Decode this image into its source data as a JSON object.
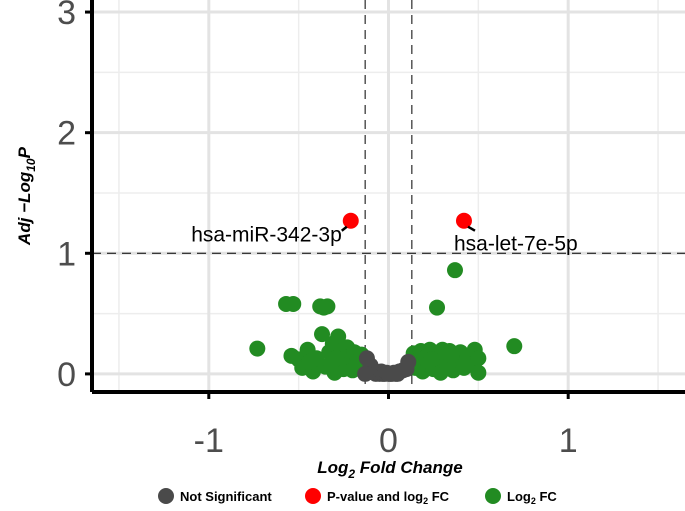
{
  "chart_data": {
    "type": "scatter",
    "title": "",
    "xlabel": "Log2 Fold Change",
    "ylabel": "Adj −Log10P",
    "xlim": [
      -1.65,
      1.65
    ],
    "ylim": [
      -0.15,
      3.1
    ],
    "x_ticks": [
      -1,
      0,
      1
    ],
    "x_tick_labels": [
      "-1",
      "0",
      "1"
    ],
    "y_ticks": [
      0,
      1,
      2,
      3
    ],
    "y_tick_labels": [
      "0",
      "1",
      "2",
      "3"
    ],
    "grid": true,
    "legend_position": "bottom",
    "thresholds": {
      "log2fc": 0.13,
      "neg_log10_p": 1.0
    },
    "colors": {
      "not_significant": "#4a4a4a",
      "p_and_fc": "#ff0000",
      "fc_only": "#228b22"
    },
    "series": [
      {
        "name": "Not Significant",
        "color": "#4a4a4a",
        "points": [
          [
            -0.12,
            0.13
          ],
          [
            -0.1,
            0.07
          ],
          [
            -0.08,
            0.02
          ],
          [
            -0.07,
            0.0
          ],
          [
            -0.05,
            0.0
          ],
          [
            -0.04,
            0.02
          ],
          [
            -0.03,
            0.0
          ],
          [
            -0.02,
            0.0
          ],
          [
            -0.01,
            0.01
          ],
          [
            0.0,
            0.0
          ],
          [
            0.01,
            0.0
          ],
          [
            0.02,
            0.0
          ],
          [
            0.03,
            0.01
          ],
          [
            0.04,
            0.0
          ],
          [
            0.05,
            0.0
          ],
          [
            0.06,
            0.02
          ],
          [
            0.08,
            0.03
          ],
          [
            0.1,
            0.04
          ],
          [
            0.11,
            0.1
          ],
          [
            -0.13,
            0.0
          ]
        ]
      },
      {
        "name": "P-value and log2 FC",
        "color": "#ff0000",
        "points": [
          [
            -0.21,
            1.27
          ],
          [
            0.42,
            1.27
          ]
        ]
      },
      {
        "name": "Log2 FC",
        "color": "#228b22",
        "points": [
          [
            -0.73,
            0.21
          ],
          [
            -0.57,
            0.58
          ],
          [
            -0.53,
            0.58
          ],
          [
            -0.54,
            0.15
          ],
          [
            -0.5,
            0.12
          ],
          [
            -0.48,
            0.05
          ],
          [
            -0.45,
            0.2
          ],
          [
            -0.42,
            0.02
          ],
          [
            -0.4,
            0.13
          ],
          [
            -0.38,
            0.56
          ],
          [
            -0.36,
            0.55
          ],
          [
            -0.34,
            0.56
          ],
          [
            -0.37,
            0.33
          ],
          [
            -0.35,
            0.06
          ],
          [
            -0.33,
            0.18
          ],
          [
            -0.31,
            0.25
          ],
          [
            -0.3,
            0.01
          ],
          [
            -0.28,
            0.31
          ],
          [
            -0.27,
            0.1
          ],
          [
            -0.26,
            0.19
          ],
          [
            -0.25,
            0.04
          ],
          [
            -0.23,
            0.22
          ],
          [
            -0.22,
            0.14
          ],
          [
            -0.2,
            0.03
          ],
          [
            -0.19,
            0.18
          ],
          [
            -0.18,
            0.08
          ],
          [
            -0.17,
            0.12
          ],
          [
            -0.16,
            0.05
          ],
          [
            -0.15,
            0.16
          ],
          [
            -0.44,
            0.1
          ],
          [
            -0.32,
            0.08
          ],
          [
            -0.29,
            0.13
          ],
          [
            0.14,
            0.17
          ],
          [
            0.15,
            0.05
          ],
          [
            0.16,
            0.11
          ],
          [
            0.18,
            0.19
          ],
          [
            0.19,
            0.02
          ],
          [
            0.2,
            0.13
          ],
          [
            0.22,
            0.08
          ],
          [
            0.23,
            0.2
          ],
          [
            0.25,
            0.04
          ],
          [
            0.26,
            0.17
          ],
          [
            0.27,
            0.55
          ],
          [
            0.28,
            0.1
          ],
          [
            0.29,
            0.01
          ],
          [
            0.3,
            0.2
          ],
          [
            0.31,
            0.14
          ],
          [
            0.33,
            0.06
          ],
          [
            0.34,
            0.19
          ],
          [
            0.36,
            0.03
          ],
          [
            0.37,
            0.86
          ],
          [
            0.39,
            0.11
          ],
          [
            0.4,
            0.18
          ],
          [
            0.42,
            0.05
          ],
          [
            0.44,
            0.14
          ],
          [
            0.46,
            0.08
          ],
          [
            0.48,
            0.2
          ],
          [
            0.5,
            0.13
          ],
          [
            0.5,
            0.01
          ],
          [
            0.7,
            0.23
          ],
          [
            0.35,
            0.15
          ],
          [
            0.24,
            0.12
          ]
        ]
      }
    ],
    "annotations": [
      {
        "text": "hsa-miR-342-3p",
        "x": -0.21,
        "y": 1.27
      },
      {
        "text": "hsa-let-7e-5p",
        "x": 0.42,
        "y": 1.27
      }
    ],
    "legend": [
      {
        "label": "Not Significant",
        "color": "#4a4a4a"
      },
      {
        "label": "P-value and log2 FC",
        "color": "#ff0000"
      },
      {
        "label": "Log2 FC",
        "color": "#228b22"
      }
    ]
  }
}
